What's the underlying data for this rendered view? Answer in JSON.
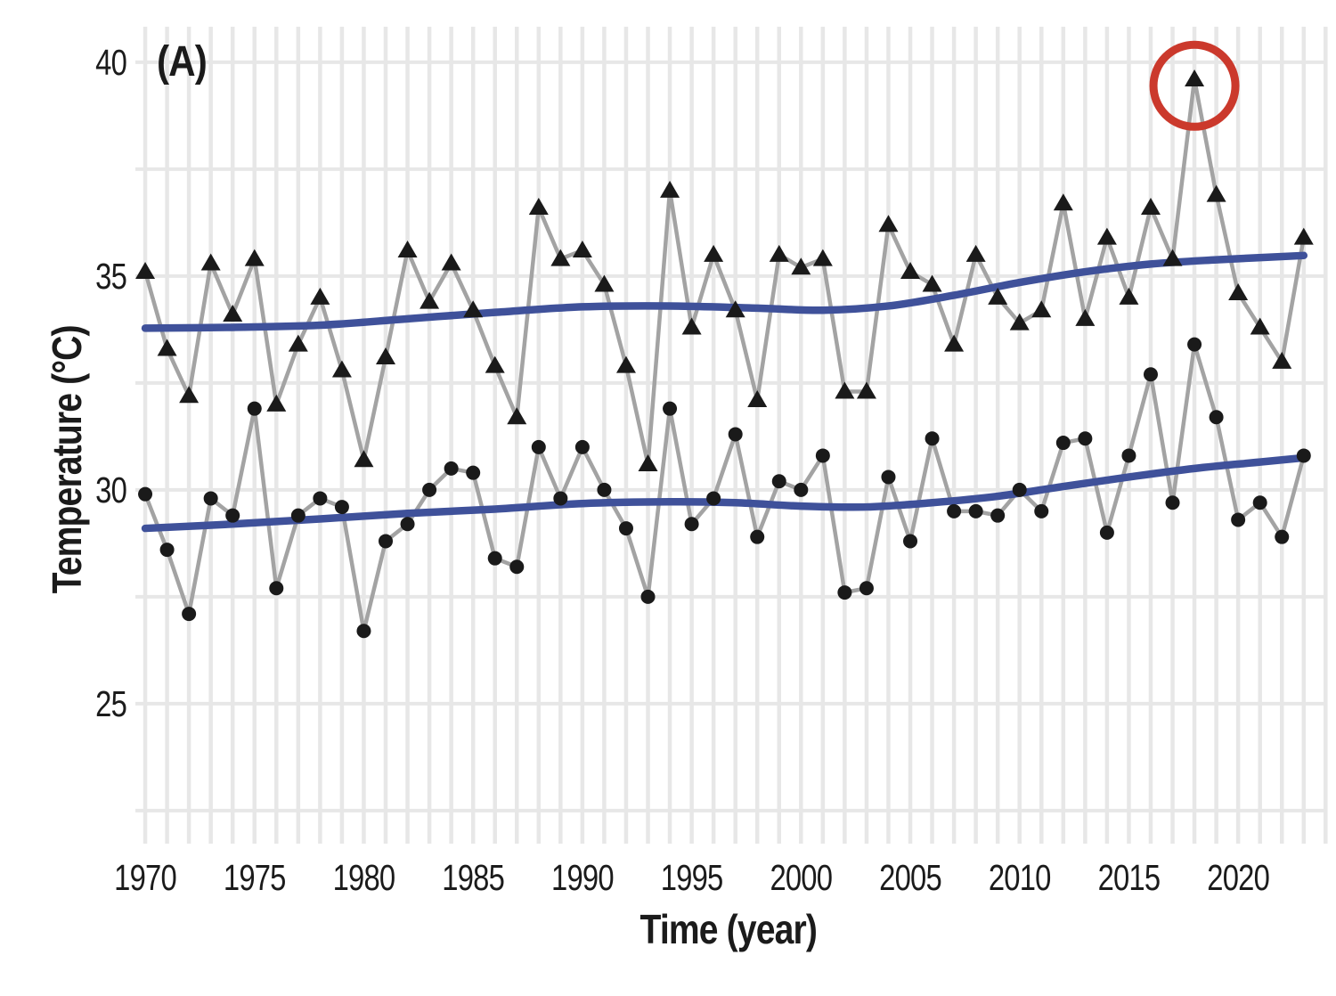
{
  "figure": {
    "panel_label": "(A)",
    "background": "#ffffff"
  },
  "chart_data": {
    "type": "line-scatter",
    "title": "",
    "xlabel": "Time (year)",
    "ylabel": "Temperature (°C)",
    "xlim": [
      1969.55,
      2024.15
    ],
    "ylim": [
      21.81,
      40.83
    ],
    "x_ticks": [
      1970,
      1975,
      1980,
      1985,
      1990,
      1995,
      2000,
      2005,
      2010,
      2015,
      2020
    ],
    "y_ticks": [
      25,
      30,
      35,
      40
    ],
    "grid": {
      "x_interval_years": 1,
      "y_interval_degrees": 2.5,
      "color": "#e7e7e7",
      "on": true
    },
    "legend": "none",
    "years": [
      1970,
      1971,
      1972,
      1973,
      1974,
      1975,
      1976,
      1977,
      1978,
      1979,
      1980,
      1981,
      1982,
      1983,
      1984,
      1985,
      1986,
      1987,
      1988,
      1989,
      1990,
      1991,
      1992,
      1993,
      1994,
      1995,
      1996,
      1997,
      1998,
      1999,
      2000,
      2001,
      2002,
      2003,
      2004,
      2005,
      2006,
      2007,
      2008,
      2009,
      2010,
      2011,
      2012,
      2013,
      2014,
      2015,
      2016,
      2017,
      2018,
      2019,
      2020,
      2021,
      2022,
      2023
    ],
    "series": [
      {
        "name": "triangle-series",
        "marker": "triangle",
        "values": [
          35.1,
          33.3,
          32.2,
          35.3,
          34.1,
          35.4,
          32.0,
          33.4,
          34.5,
          32.8,
          30.7,
          33.1,
          35.6,
          34.4,
          35.3,
          34.2,
          32.9,
          31.7,
          36.6,
          35.4,
          35.6,
          34.8,
          32.9,
          30.6,
          37.0,
          33.8,
          35.5,
          34.2,
          32.1,
          35.5,
          35.2,
          35.4,
          32.3,
          32.3,
          36.2,
          35.1,
          34.8,
          33.4,
          35.5,
          34.5,
          33.9,
          34.2,
          36.7,
          34.0,
          35.9,
          34.5,
          36.6,
          35.4,
          39.6,
          36.9,
          34.6,
          33.8,
          33.0,
          35.9
        ]
      },
      {
        "name": "circle-series",
        "marker": "circle",
        "values": [
          29.9,
          28.6,
          27.1,
          29.8,
          29.4,
          31.9,
          27.7,
          29.4,
          29.8,
          29.6,
          26.7,
          28.8,
          29.2,
          30.0,
          30.5,
          30.4,
          28.4,
          28.2,
          31.0,
          29.8,
          31.0,
          30.0,
          29.1,
          27.5,
          31.9,
          29.2,
          29.8,
          31.3,
          28.9,
          30.2,
          30.0,
          30.8,
          27.6,
          27.7,
          30.3,
          28.8,
          31.2,
          29.5,
          29.5,
          29.4,
          30.0,
          29.5,
          31.1,
          31.2,
          29.0,
          30.8,
          32.7,
          29.7,
          33.4,
          31.7,
          29.3,
          29.7,
          28.9,
          30.8
        ]
      }
    ],
    "trend_lines": [
      {
        "name": "smoothed-trend-upper",
        "points": [
          [
            1970,
            33.78
          ],
          [
            1974,
            33.8
          ],
          [
            1978,
            33.85
          ],
          [
            1982,
            34.0
          ],
          [
            1986,
            34.15
          ],
          [
            1990,
            34.28
          ],
          [
            1994,
            34.3
          ],
          [
            1998,
            34.25
          ],
          [
            2001,
            34.2
          ],
          [
            2004,
            34.3
          ],
          [
            2007,
            34.55
          ],
          [
            2010,
            34.85
          ],
          [
            2013,
            35.1
          ],
          [
            2016,
            35.28
          ],
          [
            2019,
            35.38
          ],
          [
            2023,
            35.48
          ]
        ]
      },
      {
        "name": "smoothed-trend-lower",
        "points": [
          [
            1970,
            29.1
          ],
          [
            1974,
            29.2
          ],
          [
            1978,
            29.32
          ],
          [
            1982,
            29.45
          ],
          [
            1986,
            29.55
          ],
          [
            1990,
            29.68
          ],
          [
            1994,
            29.72
          ],
          [
            1997,
            29.7
          ],
          [
            2000,
            29.62
          ],
          [
            2003,
            29.6
          ],
          [
            2006,
            29.7
          ],
          [
            2009,
            29.85
          ],
          [
            2012,
            30.08
          ],
          [
            2015,
            30.3
          ],
          [
            2018,
            30.5
          ],
          [
            2021,
            30.65
          ],
          [
            2023,
            30.75
          ]
        ]
      }
    ],
    "annotation": {
      "shape": "circle-outline",
      "year": 2018,
      "value": 39.45,
      "radius_px": 46
    },
    "colors": {
      "marker": "#1a1a1a",
      "series_line": "#a3a3a3",
      "trend": "#3f519a",
      "annotation": "#cb392c",
      "grid": "#e7e7e7",
      "text": "#1b1b1b",
      "background": "#ffffff"
    }
  }
}
